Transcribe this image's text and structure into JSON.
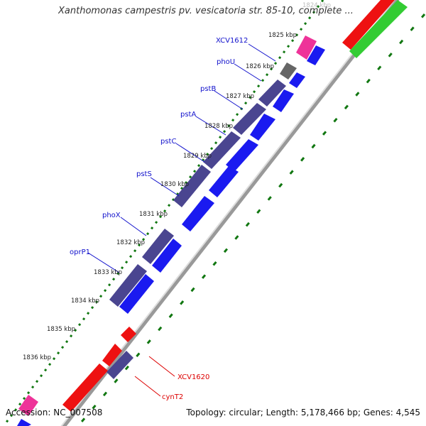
{
  "title": "Xanthomonas campestris pv. vesicatoria str. 85-10, complete ...",
  "footer": {
    "accession": "Accession: NC_007508",
    "stats": "Topology: circular; Length: 5,178,466 bp; Genes: 4,545"
  },
  "colors": {
    "gene_dark": "#4a4590",
    "gene_blue": "#1a1af0",
    "gene_pink": "#ee3399",
    "gene_grey": "#666666",
    "gene_red": "#ee1111",
    "gene_green": "#33cc33",
    "backbone": "#888888",
    "ticks": "#117711",
    "label_blue": "#1111cc",
    "label_red": "#dd0000"
  },
  "kbp_ticks": [
    "1824 kbp",
    "1825 kbp",
    "1826 kbp",
    "1827 kbp",
    "1828 kbp",
    "1829 kbp",
    "1830 kbp",
    "1831 kbp",
    "1832 kbp",
    "1833 kbp",
    "1834 kbp",
    "1835 kbp",
    "1836 kbp"
  ],
  "gene_labels": [
    {
      "name": "XCV1612",
      "color": "blue"
    },
    {
      "name": "phoU",
      "color": "blue"
    },
    {
      "name": "pstB",
      "color": "blue"
    },
    {
      "name": "pstA",
      "color": "blue"
    },
    {
      "name": "pstC",
      "color": "blue"
    },
    {
      "name": "pstS",
      "color": "blue"
    },
    {
      "name": "phoX",
      "color": "blue"
    },
    {
      "name": "oprP1",
      "color": "blue"
    },
    {
      "name": "XCV1620",
      "color": "red"
    },
    {
      "name": "cynT2",
      "color": "red"
    }
  ]
}
